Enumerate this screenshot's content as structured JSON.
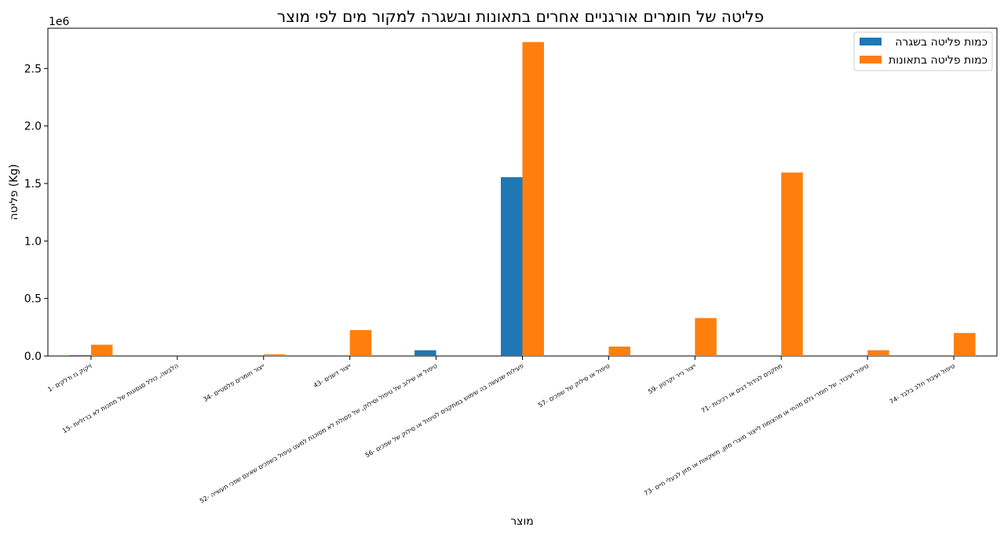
{
  "chart_data": {
    "type": "bar",
    "title": "פליטה של חומרים אורגניים אחרים בתאונות ובשגרה למקור מים לפי מוצר",
    "xlabel": "מוצר",
    "ylabel": "פליטה (Kg)",
    "y_offset_label": "1e6",
    "ylim": [
      0,
      2850000
    ],
    "yticks": [
      0,
      500000,
      1000000,
      1500000,
      2000000,
      2500000
    ],
    "ytick_labels": [
      "0.0",
      "0.5",
      "1.0",
      "1.5",
      "2.0",
      "2.5"
    ],
    "legend_position": "top-right",
    "categories": [
      "1- זיקוק גז ודלקים",
      "15- הלבשה, כולל סגסוגות של מתכות לא ברזליות",
      "34- ייצור חומרים פלסטיים",
      "43- ייצור דשנים",
      "52- טיפול או שילוב של טיפול וסילוק, של פסולת לא מסוכנת למעט טיפול בשפכים שאינם שפכי תעשייה",
      "56- פעילות שנעשה בה שימוש במתקנים לטיפול או סילוק של שפכים",
      "57- טיפול או סילוק של שפכים",
      "59- ייצור נייר וקרטון",
      "71- מתקנים לגידול דגים או רכיכות",
      "73- טיפול ועיבוד, של חומרי גלם מהחי או מהצומח לייצור מוצרי מזון, משקאות או מזון לבעלי חיים",
      "74- טיפול ועיבוד חלב בלבד"
    ],
    "series": [
      {
        "name": "כמות פליטה בשגרה",
        "color": "#1f77b4",
        "values": [
          8000,
          0,
          0,
          0,
          50000,
          1555000,
          0,
          0,
          0,
          0,
          0
        ]
      },
      {
        "name": "כמות פליטה בתאונות",
        "color": "#ff7f0e",
        "values": [
          98000,
          0,
          15000,
          225000,
          0,
          2730000,
          82000,
          330000,
          1595000,
          50000,
          200000
        ]
      }
    ]
  }
}
